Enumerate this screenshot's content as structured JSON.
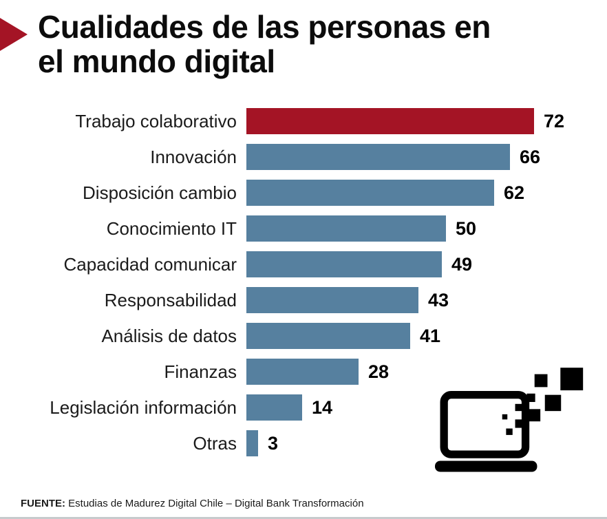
{
  "header": {
    "title_line1": "Cualidades de las personas en",
    "title_line2": "el mundo digital"
  },
  "chart_data": {
    "type": "bar",
    "orientation": "horizontal",
    "title": "Cualidades de las personas en el mundo digital",
    "categories": [
      "Trabajo colaborativo",
      "Innovación",
      "Disposición cambio",
      "Conocimiento IT",
      "Capacidad comunicar",
      "Responsabilidad",
      "Análisis de datos",
      "Finanzas",
      "Legislación información",
      "Otras"
    ],
    "values": [
      72,
      66,
      62,
      50,
      49,
      43,
      41,
      28,
      14,
      3
    ],
    "max_value": 72,
    "highlight_index": 0,
    "highlight_color": "#a41425",
    "bar_color": "#56809f",
    "value_labels": true,
    "legend": false,
    "grid": false,
    "xlim": [
      0,
      72
    ]
  },
  "icons": {
    "title_arrow": "red-arrow-icon",
    "laptop": "laptop-with-pixels-icon"
  },
  "footer": {
    "source_label": "FUENTE:",
    "source_text": " Estudias de Madurez Digital Chile – Digital Bank Transformación"
  },
  "colors": {
    "accent_red": "#a41425",
    "bar_blue": "#56809f",
    "text": "#000000",
    "background": "#ffffff"
  }
}
